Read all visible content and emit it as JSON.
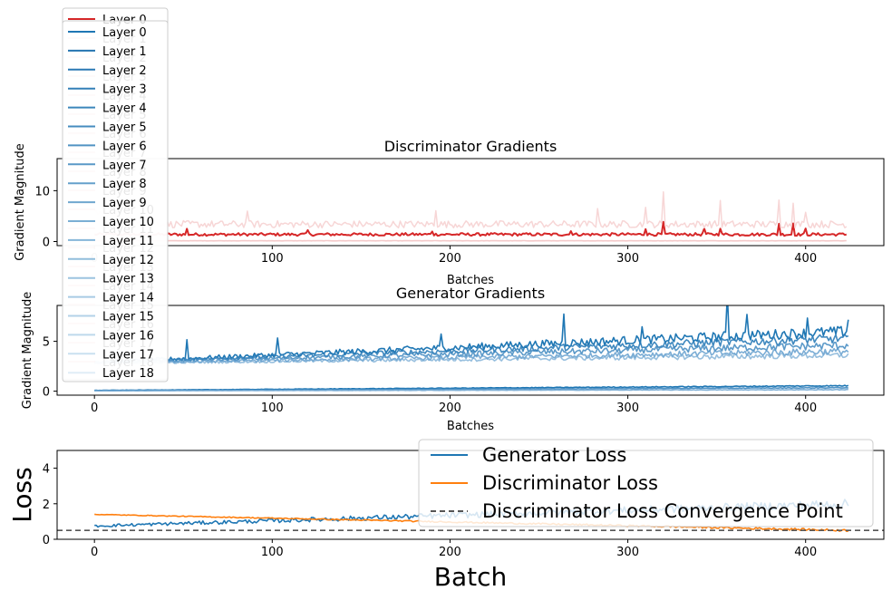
{
  "chart_data": [
    {
      "type": "line",
      "title": "Discriminator Gradients",
      "xlabel": "Batches",
      "ylabel": "Gradient Magnitude",
      "xlim": [
        -21,
        444
      ],
      "ylim": [
        -0.8,
        16.3
      ],
      "x_ticks": [
        0,
        100,
        200,
        300,
        400
      ],
      "y_ticks": [
        0,
        10
      ],
      "series": [
        {
          "name": "Layer 0",
          "color": "#d62728",
          "start": 0,
          "end": 423,
          "base": 1.4,
          "noise": 0.28,
          "spikes": [
            [
              52,
              1.0
            ],
            [
              120,
              0.8
            ],
            [
              190,
              0.7
            ],
            [
              268,
              0.9
            ],
            [
              310,
              1.3
            ],
            [
              320,
              2.2
            ],
            [
              343,
              1.2
            ],
            [
              352,
              1.4
            ],
            [
              385,
              2.1
            ],
            [
              393,
              2.2
            ],
            [
              400,
              1.0
            ]
          ],
          "opacity": 1.0,
          "lw": 2.0
        },
        {
          "name": "Layer 1",
          "color": "#f4c9c9",
          "start": 0,
          "end": 423,
          "base": 0.15,
          "noise": 0.03,
          "spikes": [],
          "opacity": 1.0,
          "lw": 1.6
        },
        {
          "name": "Layer 2",
          "color": "#f7d6d6",
          "start": 0,
          "end": 423,
          "base": 3.4,
          "noise": 0.7,
          "spikes": [
            [
              18,
              3.5
            ],
            [
              86,
              3.0
            ],
            [
              192,
              3.2
            ],
            [
              283,
              3.4
            ],
            [
              310,
              4.0
            ],
            [
              320,
              6.0
            ],
            [
              352,
              4.5
            ],
            [
              385,
              5.2
            ],
            [
              393,
              4.8
            ],
            [
              400,
              3.0
            ]
          ],
          "opacity": 1.0,
          "lw": 1.5
        }
      ]
    },
    {
      "type": "line",
      "title": "Generator Gradients",
      "xlabel": "Batches",
      "ylabel": "Gradient Magnitude",
      "xlim": [
        -21,
        444
      ],
      "ylim": [
        -0.4,
        8.6
      ],
      "x_ticks": [
        0,
        100,
        200,
        300,
        400
      ],
      "y_ticks": [
        0,
        5
      ],
      "series": [
        {
          "name": "Layer 0",
          "color": "#1f77b4",
          "start": 0,
          "end": 424,
          "base_start": 2.9,
          "base_end": 6.0,
          "noise": 0.55,
          "spikes": [
            [
              52,
              1.8
            ],
            [
              103,
              1.6
            ],
            [
              195,
              1.2
            ],
            [
              264,
              3.2
            ],
            [
              308,
              1.6
            ],
            [
              356,
              4.2
            ],
            [
              367,
              2.5
            ],
            [
              401,
              1.5
            ],
            [
              424,
              1.3
            ]
          ],
          "opacity": 1.0
        },
        {
          "name": "Layer 1",
          "color": "#2b7cb8",
          "start": 0,
          "end": 424,
          "base_start": 2.9,
          "base_end": 5.3,
          "noise": 0.45,
          "spikes": [],
          "opacity": 0.9
        },
        {
          "name": "Layer 2",
          "color": "#3f88c0",
          "start": 0,
          "end": 424,
          "base_start": 2.9,
          "base_end": 4.6,
          "noise": 0.4,
          "spikes": [],
          "opacity": 0.85
        },
        {
          "name": "Layer 3",
          "color": "#5a99ca",
          "start": 0,
          "end": 424,
          "base_start": 2.8,
          "base_end": 4.0,
          "noise": 0.35,
          "spikes": [],
          "opacity": 0.8
        },
        {
          "name": "Layer 4",
          "color": "#74a9d3",
          "start": 0,
          "end": 424,
          "base_start": 2.8,
          "base_end": 3.6,
          "noise": 0.3,
          "spikes": [],
          "opacity": 0.75
        },
        {
          "name": "Layer 5",
          "color": "#1f77b4",
          "start": 0,
          "end": 424,
          "base_start": 0.08,
          "base_end": 0.55,
          "noise": 0.05,
          "spikes": [],
          "opacity": 1.0
        },
        {
          "name": "Layer 6",
          "color": "#3f88c0",
          "start": 0,
          "end": 424,
          "base_start": 0.06,
          "base_end": 0.35,
          "noise": 0.04,
          "spikes": [],
          "opacity": 0.9
        },
        {
          "name": "Layer 7",
          "color": "#74a9d3",
          "start": 0,
          "end": 424,
          "base_start": 0.04,
          "base_end": 0.15,
          "noise": 0.03,
          "spikes": [],
          "opacity": 0.9
        }
      ]
    },
    {
      "type": "line",
      "title": "",
      "xlabel": "Batch",
      "ylabel": "Loss",
      "xlim": [
        -21,
        444
      ],
      "ylim": [
        0,
        5
      ],
      "x_ticks": [
        0,
        100,
        200,
        300,
        400
      ],
      "y_ticks": [
        0,
        2,
        4
      ],
      "hline": {
        "y": 0.5,
        "color": "#555555",
        "label": "Discriminator Loss Convergence Point"
      },
      "series": [
        {
          "name": "Generator Loss",
          "color": "#1f77b4",
          "start": 0,
          "end": 424,
          "base_start": 0.75,
          "base_end": 2.0,
          "noise": 0.25
        },
        {
          "name": "Discriminator Loss",
          "color": "#ff7f0e",
          "start": 0,
          "end": 424,
          "base_start": 1.4,
          "base_end": 0.5,
          "noise": 0.06
        }
      ]
    }
  ],
  "disc_legend": [
    "Layer 0",
    "Layer 1",
    "Layer 2",
    "Layer 3",
    "Layer 4",
    "Layer 5",
    "Layer 6",
    "Layer 7",
    "Layer 8",
    "Layer 9",
    "Layer 10",
    "Layer 11",
    "Layer 12",
    "Layer 13",
    "Layer 14",
    "Layer 15",
    "Layer 16",
    "Layer 17",
    "Layer 18"
  ],
  "gen_legend": [
    "Layer 0",
    "Layer 1",
    "Layer 2",
    "Layer 3",
    "Layer 4",
    "Layer 5",
    "Layer 6",
    "Layer 7",
    "Layer 8",
    "Layer 9",
    "Layer 10",
    "Layer 11",
    "Layer 12",
    "Layer 13",
    "Layer 14",
    "Layer 15",
    "Layer 16",
    "Layer 17",
    "Layer 18"
  ],
  "gen_legend_colors": [
    "#1f77b4",
    "#2474b0",
    "#2a79b4",
    "#3380b8",
    "#3c86bb",
    "#458cbf",
    "#5093c3",
    "#5a99c7",
    "#65a0cb",
    "#70a7cf",
    "#7bafd4",
    "#86b6d8",
    "#91bddc",
    "#9cc4e0",
    "#a8cbe4",
    "#b3d2e8",
    "#bed9ec",
    "#c9e0f0",
    "#e0edf7"
  ],
  "loss_legend": [
    "Generator Loss",
    "Discriminator Loss",
    "Discriminator Loss Convergence Point"
  ]
}
